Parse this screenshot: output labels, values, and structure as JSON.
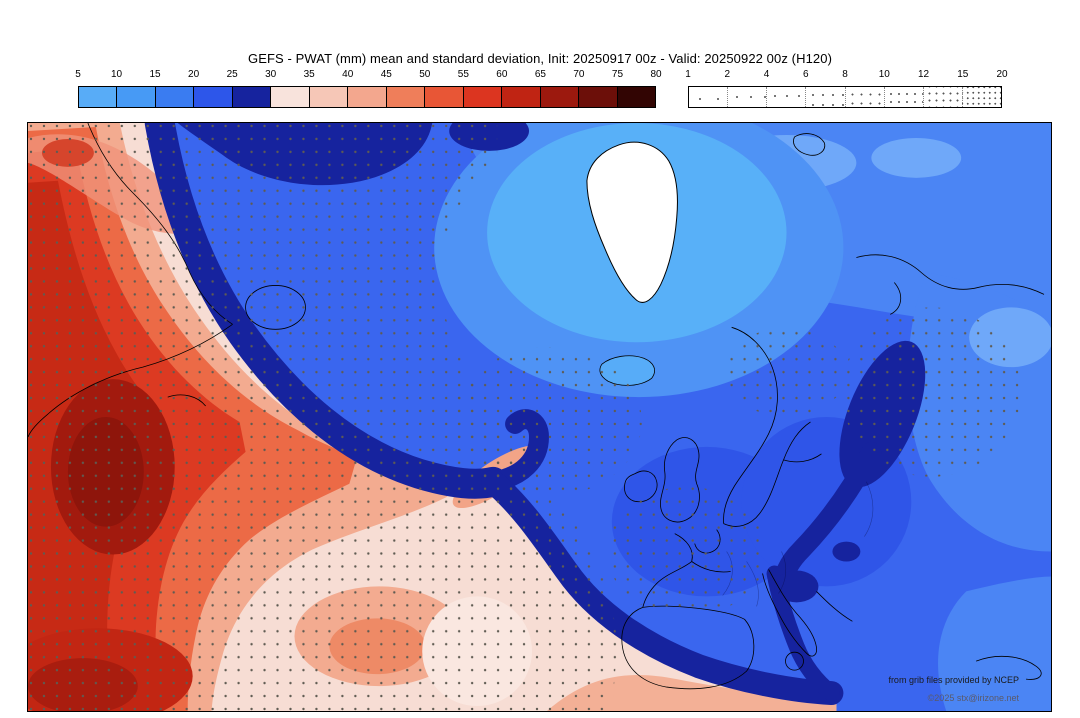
{
  "title": "GEFS - PWAT (mm) mean and standard deviation, Init: 20250917 00z - Valid: 20250922 00z (H120)",
  "colorbar": {
    "ticks": [
      "5",
      "10",
      "15",
      "20",
      "25",
      "30",
      "35",
      "40",
      "45",
      "50",
      "55",
      "60",
      "65",
      "70",
      "75",
      "80"
    ],
    "colors": [
      "#58acf7",
      "#479af5",
      "#3a7cf1",
      "#2d56ea",
      "#16239e",
      "#f8e3dc",
      "#f6c7b7",
      "#f3a78e",
      "#ef7e5a",
      "#e85636",
      "#dc3520",
      "#c02413",
      "#9c190e",
      "#6c0f09",
      "#320503"
    ]
  },
  "stipple_legend": {
    "ticks": [
      "1",
      "2",
      "4",
      "6",
      "8",
      "10",
      "12",
      "15",
      "20"
    ]
  },
  "credits": {
    "line1": "from grib files provided by NCEP",
    "line2": "©2025 stx@irizone.net"
  }
}
